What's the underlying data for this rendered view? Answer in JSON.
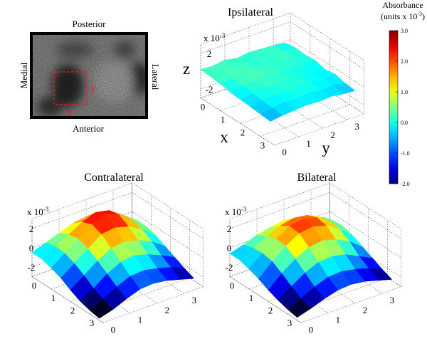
{
  "chart_data": [
    {
      "type": "image",
      "labels": {
        "top": "Posterior",
        "bottom": "Anterior",
        "left": "Medial",
        "right": "Lateral"
      },
      "roi_axes": {
        "x": "x",
        "y": "y"
      }
    },
    {
      "type": "surface3d",
      "title": "Ipsilateral",
      "multiplier": {
        "base": "x 10",
        "exponent": "-3"
      },
      "axis_labels": {
        "x": "x",
        "y": "y",
        "z": "z"
      },
      "x": [
        0,
        0.5,
        1,
        1.5,
        2,
        2.5,
        3,
        3.5
      ],
      "y": [
        0,
        0.5,
        1,
        1.5,
        2,
        2.5,
        3,
        3.5
      ],
      "z": [
        [
          0.2,
          0.1,
          0.3,
          0,
          0.2,
          0.1,
          0,
          -0.2
        ],
        [
          0.1,
          0.3,
          0,
          0.2,
          -0.1,
          0.3,
          0.1,
          0
        ],
        [
          0,
          0.2,
          0.4,
          0.1,
          0.2,
          0,
          0.2,
          -0.1
        ],
        [
          -0.2,
          0,
          0.1,
          0.3,
          0,
          0.2,
          -0.1,
          0
        ],
        [
          -0.3,
          -0.1,
          0.2,
          0,
          0.1,
          -0.2,
          0,
          -0.3
        ],
        [
          -0.4,
          -0.2,
          0,
          -0.1,
          0.2,
          0,
          -0.2,
          -0.1
        ],
        [
          -0.5,
          -0.3,
          -0.1,
          -0.2,
          0,
          -0.3,
          -0.1,
          -0.4
        ],
        [
          -0.6,
          -0.4,
          -0.3,
          -0.2,
          -0.3,
          -0.2,
          -0.4,
          -0.5
        ]
      ],
      "xlim": [
        0,
        3.7
      ],
      "ylim": [
        0,
        3.7
      ],
      "zlim": [
        -3,
        3
      ],
      "xticks": [
        0,
        1,
        2,
        3
      ],
      "yticks": [
        0,
        1,
        2,
        3
      ],
      "zticks": [
        -2,
        0,
        2
      ]
    },
    {
      "type": "surface3d",
      "title": "Contralateral",
      "multiplier": {
        "base": "x 10",
        "exponent": "-3"
      },
      "x": [
        0,
        0.5,
        1,
        1.5,
        2,
        2.5,
        3,
        3.5
      ],
      "y": [
        0,
        0.5,
        1,
        1.5,
        2,
        2.5,
        3,
        3.5
      ],
      "z": [
        [
          -0.5,
          0,
          0.5,
          1.0,
          1.2,
          1.0,
          0.3,
          -0.3
        ],
        [
          -0.5,
          0.3,
          1.0,
          1.8,
          2.3,
          2.0,
          1.0,
          0
        ],
        [
          -0.8,
          0.2,
          1.2,
          2.2,
          2.8,
          2.2,
          1.2,
          0
        ],
        [
          -1.2,
          -0.2,
          0.8,
          1.8,
          2.0,
          1.6,
          0.8,
          -0.3
        ],
        [
          -1.8,
          -0.8,
          0.2,
          1.0,
          1.2,
          0.8,
          0.2,
          -0.8
        ],
        [
          -2.3,
          -1.5,
          -0.5,
          0.2,
          0.4,
          0,
          -0.6,
          -1.3
        ],
        [
          -2.6,
          -2.0,
          -1.2,
          -0.6,
          -0.5,
          -0.8,
          -1.2,
          -1.8
        ],
        [
          -2.8,
          -2.4,
          -1.8,
          -1.3,
          -1.2,
          -1.4,
          -1.8,
          -2.2
        ]
      ],
      "xlim": [
        0,
        3.7
      ],
      "ylim": [
        0,
        3.7
      ],
      "zlim": [
        -3,
        3
      ],
      "xticks": [
        0,
        1,
        2,
        3
      ],
      "yticks": [
        0,
        1,
        2,
        3
      ],
      "zticks": [
        -2,
        0,
        2
      ]
    },
    {
      "type": "surface3d",
      "title": "Bilateral",
      "multiplier": {
        "base": "x 10",
        "exponent": "-3"
      },
      "x": [
        0,
        0.5,
        1,
        1.5,
        2,
        2.5,
        3,
        3.5
      ],
      "y": [
        0,
        0.5,
        1,
        1.5,
        2,
        2.5,
        3,
        3.5
      ],
      "z": [
        [
          -0.6,
          -0.2,
          0.3,
          0.6,
          0.8,
          0.6,
          0.2,
          -0.4
        ],
        [
          -0.6,
          0.1,
          0.8,
          1.4,
          1.7,
          1.5,
          0.8,
          -0.1
        ],
        [
          -0.9,
          0.2,
          1.2,
          2.0,
          2.3,
          1.9,
          1.0,
          -0.1
        ],
        [
          -1.3,
          0,
          1.1,
          1.9,
          2.1,
          1.7,
          0.8,
          -0.4
        ],
        [
          -1.8,
          -0.6,
          0.4,
          1.1,
          1.3,
          0.9,
          0.2,
          -0.9
        ],
        [
          -2.2,
          -1.3,
          -0.4,
          0.2,
          0.3,
          0,
          -0.7,
          -1.4
        ],
        [
          -2.5,
          -1.9,
          -1.2,
          -0.7,
          -0.6,
          -0.9,
          -1.3,
          -1.9
        ],
        [
          -2.7,
          -2.3,
          -1.8,
          -1.4,
          -1.3,
          -1.5,
          -1.9,
          -2.3
        ]
      ],
      "xlim": [
        0,
        3.7
      ],
      "ylim": [
        0,
        3.7
      ],
      "zlim": [
        -3,
        3
      ],
      "xticks": [
        0,
        1,
        2,
        3
      ],
      "yticks": [
        0,
        1,
        2,
        3
      ],
      "zticks": [
        -2,
        0,
        2
      ]
    },
    {
      "type": "colorbar",
      "title": "Absorbance",
      "units": {
        "before": "(units x 10",
        "exponent": "-3",
        "after": ")"
      },
      "colormap": "jet",
      "clim": [
        -2,
        3
      ],
      "ticks": [
        {
          "value": 3,
          "label": "3.0"
        },
        {
          "value": 2,
          "label": "2.0"
        },
        {
          "value": 1,
          "label": "1.0"
        },
        {
          "value": 0,
          "label": "0.0"
        },
        {
          "value": -1,
          "label": "-1.0"
        },
        {
          "value": -2,
          "label": "-2.0"
        }
      ]
    }
  ]
}
